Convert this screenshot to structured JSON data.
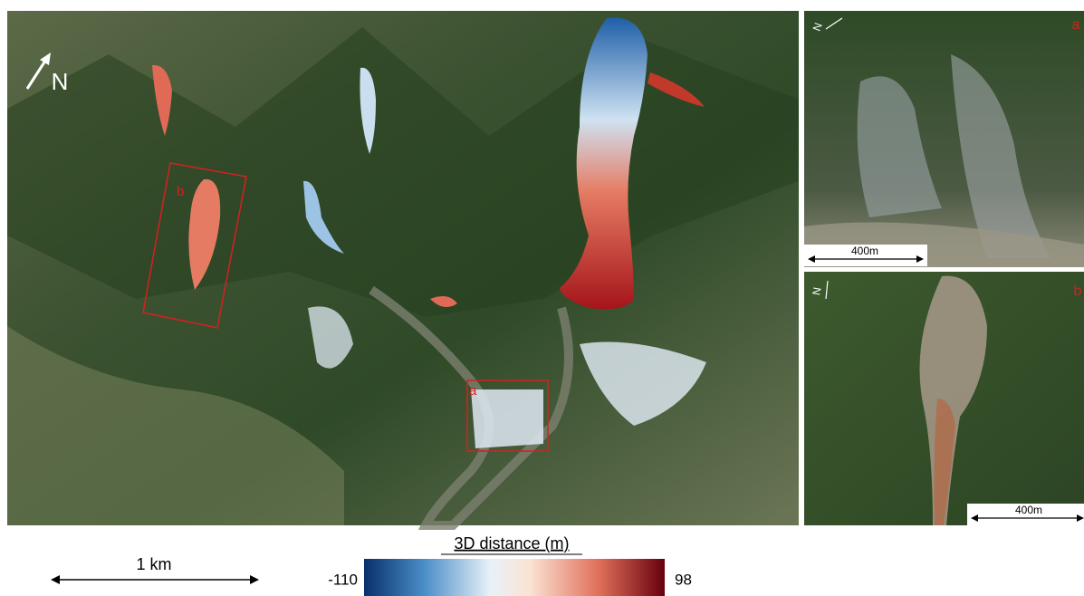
{
  "main_map": {
    "north_label": "N",
    "box_labels": [
      "b",
      "a"
    ]
  },
  "insets": [
    {
      "label": "a",
      "north_label": "N",
      "scale_label": "400m"
    },
    {
      "label": "b",
      "north_label": "N",
      "scale_label": "400m"
    }
  ],
  "scale_bar": {
    "label": "1 km"
  },
  "colorbar": {
    "title": "3D distance (m)",
    "min": -110,
    "max": 98
  }
}
